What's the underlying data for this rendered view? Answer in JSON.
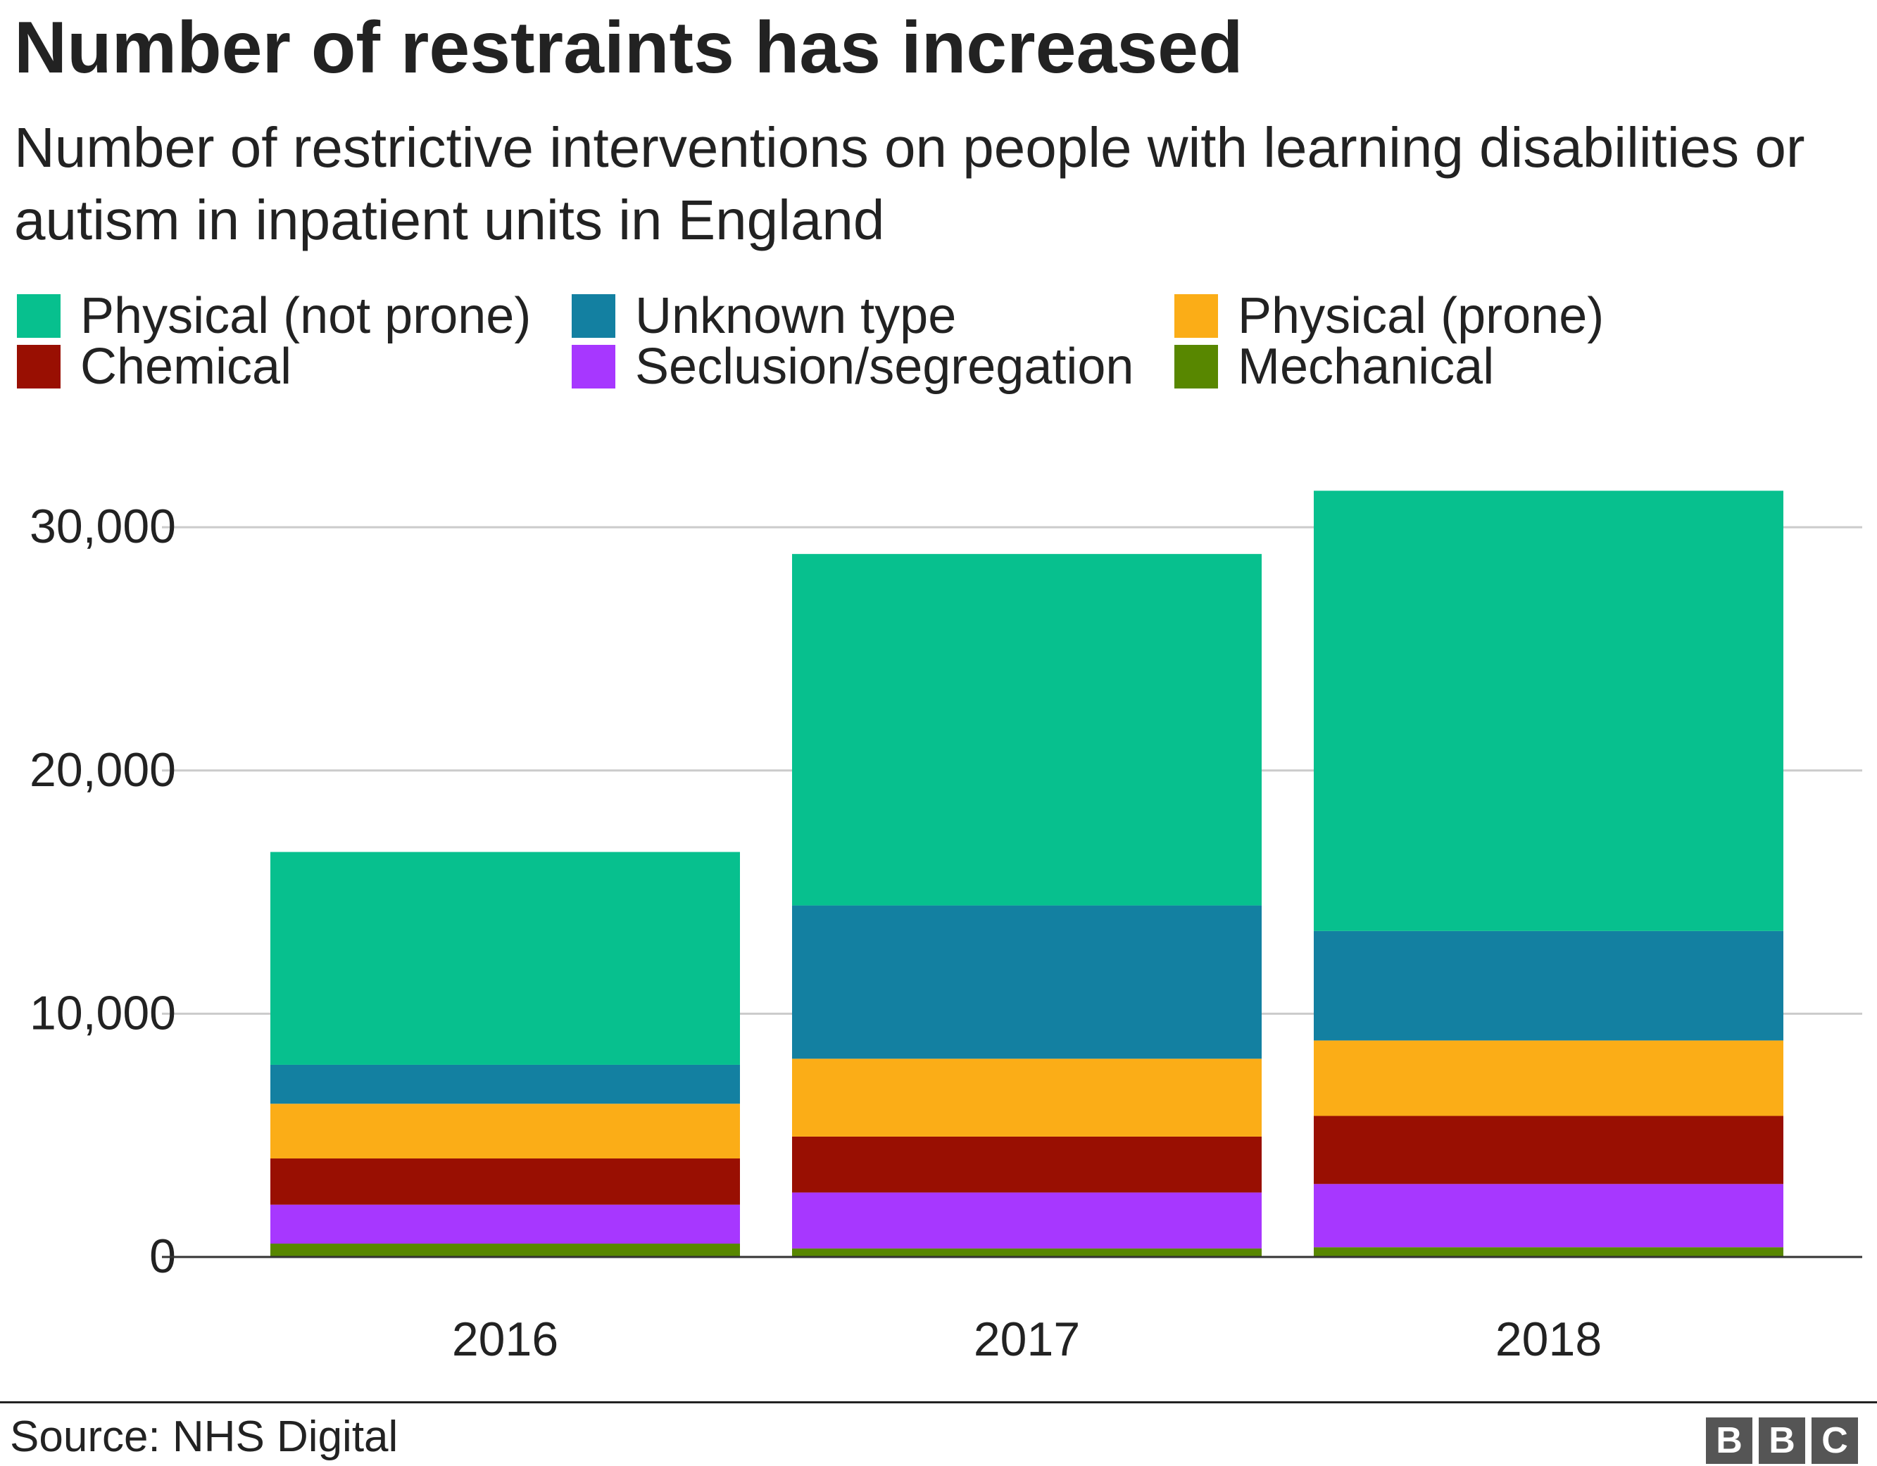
{
  "chart_data": {
    "type": "bar",
    "stacked": true,
    "title": "Number of restraints has increased",
    "subtitle": "Number of restrictive interventions on people with learning disabilities or autism in inpatient units in England",
    "categories": [
      "2016",
      "2017",
      "2018"
    ],
    "series": [
      {
        "name": "Mechanical",
        "color": "#588700",
        "values": [
          550,
          350,
          400
        ]
      },
      {
        "name": "Seclusion/segregation",
        "color": "#a737ff",
        "values": [
          1600,
          2300,
          2600
        ]
      },
      {
        "name": "Chemical",
        "color": "#990f02",
        "values": [
          1900,
          2300,
          2800
        ]
      },
      {
        "name": "Physical (prone)",
        "color": "#fbad17",
        "values": [
          2250,
          3200,
          3100
        ]
      },
      {
        "name": "Unknown type",
        "color": "#1380a1",
        "values": [
          1600,
          6300,
          4500
        ]
      },
      {
        "name": "Physical (not prone)",
        "color": "#07c08e",
        "values": [
          8750,
          14450,
          18100
        ]
      }
    ],
    "legend": [
      {
        "name": "Physical (not prone)",
        "color": "#07c08e"
      },
      {
        "name": "Unknown type",
        "color": "#1380a1"
      },
      {
        "name": "Physical (prone)",
        "color": "#fbad17"
      },
      {
        "name": "Chemical",
        "color": "#990f02"
      },
      {
        "name": "Seclusion/segregation",
        "color": "#a737ff"
      },
      {
        "name": "Mechanical",
        "color": "#588700"
      }
    ],
    "yticks": [
      0,
      10000,
      20000,
      30000
    ],
    "ytick_labels": [
      "0",
      "10,000",
      "20,000",
      "30,000"
    ],
    "ylim": [
      0,
      32000
    ],
    "grid": true,
    "legend_position": "top",
    "xlabel": "",
    "ylabel": ""
  },
  "footer": {
    "source": "Source: NHS Digital",
    "logo": [
      "B",
      "B",
      "C"
    ]
  }
}
